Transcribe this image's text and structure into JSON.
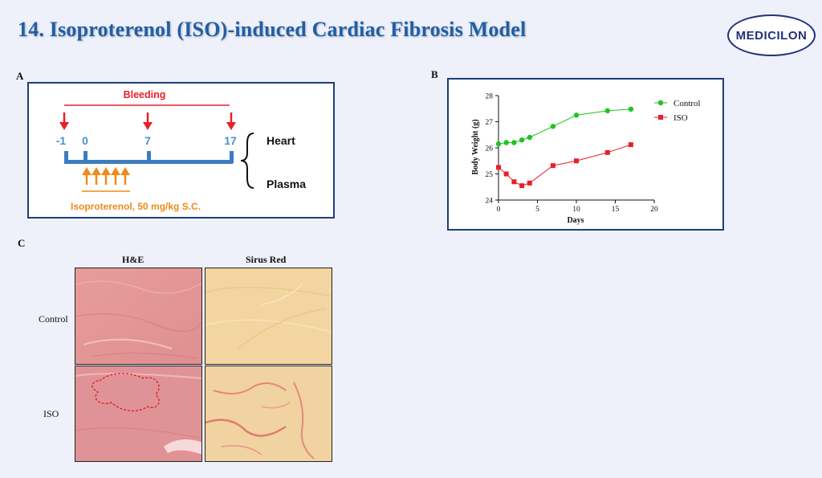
{
  "header": {
    "title": "14. Isoproterenol (ISO)-induced Cardiac Fibrosis Model",
    "logo_text": "MEDICILON"
  },
  "panel_a": {
    "label": "A",
    "bleeding_label": "Bleeding",
    "timepoints": [
      "-1",
      "0",
      "7",
      "17"
    ],
    "outputs": [
      "Heart",
      "Plasma"
    ],
    "dosing_label": "Isoproterenol, 50 mg/kg S.C."
  },
  "panel_b": {
    "label": "B"
  },
  "panel_c": {
    "label": "C",
    "columns": [
      "H&E",
      "Sirus Red"
    ],
    "rows": [
      "Control",
      "ISO"
    ]
  },
  "chart_data": {
    "type": "line",
    "title": "",
    "xlabel": "Days",
    "ylabel": "Body Weight (g)",
    "xlim": [
      0,
      20
    ],
    "ylim": [
      24,
      28
    ],
    "xticks": [
      "0",
      "5",
      "10",
      "15",
      "20"
    ],
    "yticks": [
      "24",
      "25",
      "26",
      "27",
      "28"
    ],
    "legend_position": "top-right",
    "series": [
      {
        "name": "Control",
        "color": "#1fc41f",
        "marker": "circle",
        "x": [
          0,
          1,
          2,
          3,
          4,
          7,
          10,
          14,
          17
        ],
        "y": [
          26.15,
          26.2,
          26.2,
          26.3,
          26.4,
          26.82,
          27.25,
          27.42,
          27.48
        ]
      },
      {
        "name": "ISO",
        "color": "#e8202a",
        "marker": "square",
        "x": [
          0,
          1,
          2,
          3,
          4,
          7,
          10,
          14,
          17
        ],
        "y": [
          25.25,
          25.0,
          24.7,
          24.55,
          24.65,
          25.32,
          25.5,
          25.82,
          26.12
        ]
      }
    ]
  }
}
